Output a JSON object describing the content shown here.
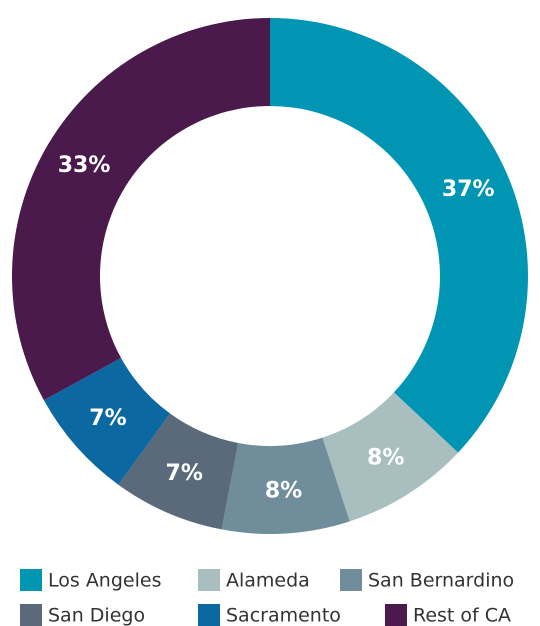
{
  "chart_data": {
    "type": "pie",
    "categories": [
      "Los Angeles",
      "Alameda",
      "San Bernardino",
      "San Diego",
      "Sacramento",
      "Rest of CA"
    ],
    "values": [
      37,
      8,
      8,
      7,
      7,
      33
    ],
    "value_labels": [
      "37%",
      "8%",
      "8%",
      "7%",
      "7%",
      "33%"
    ],
    "colors": [
      "#0095b2",
      "#a9bebe",
      "#6f8d9a",
      "#5b6a7b",
      "#0b68a0",
      "#4b1a4d"
    ]
  }
}
